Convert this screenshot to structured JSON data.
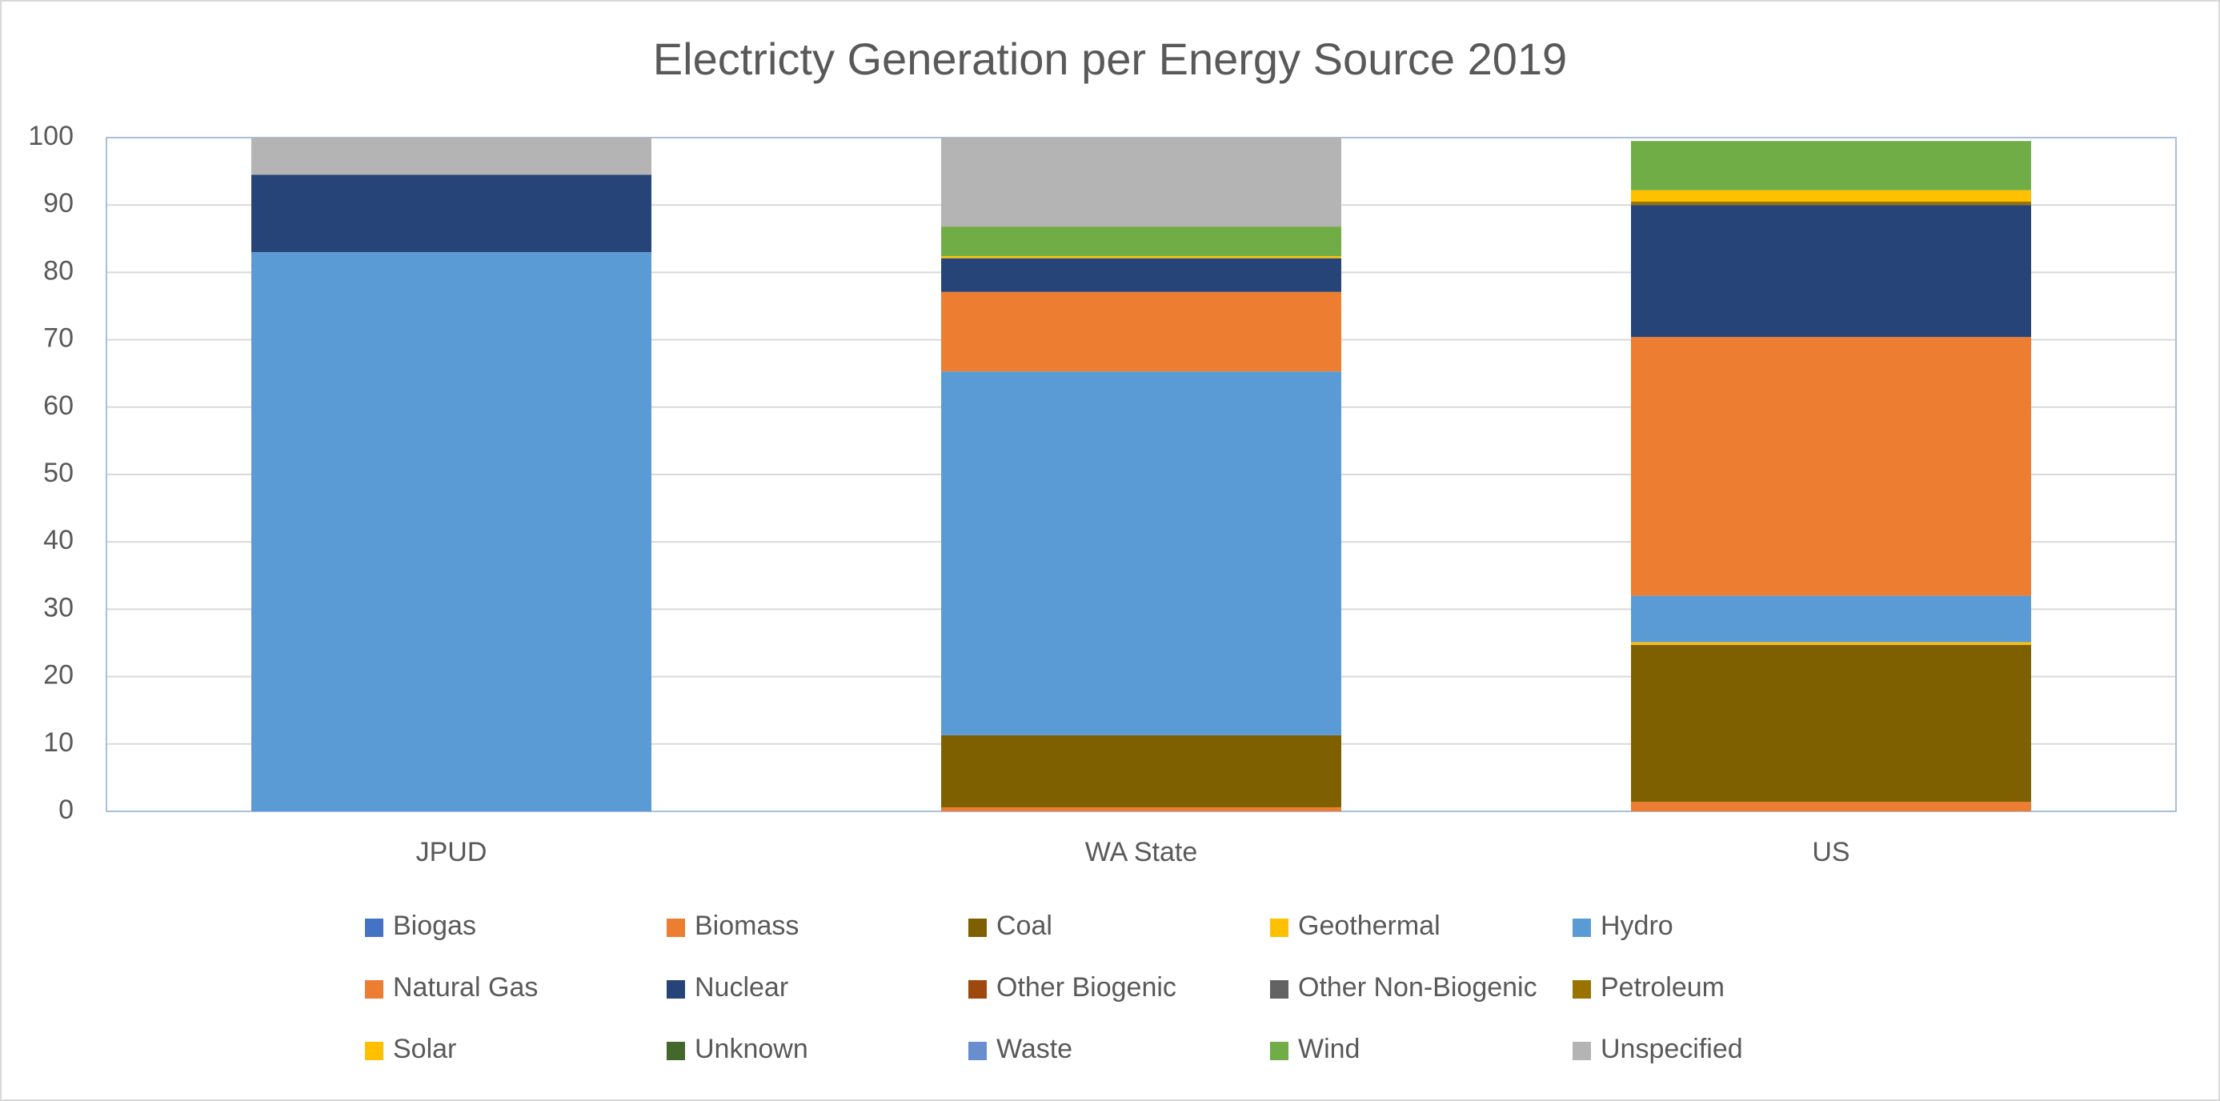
{
  "chart_data": {
    "type": "stacked-bar",
    "title": "Electricty Generation per Energy Source 2019",
    "categories": [
      "JPUD",
      "WA State",
      "US"
    ],
    "series": [
      {
        "name": "Biogas",
        "color": "#4472c4",
        "values": [
          0,
          0,
          0
        ]
      },
      {
        "name": "Biomass",
        "color": "#ed7d31",
        "values": [
          0,
          0.6,
          1.4
        ]
      },
      {
        "name": "Coal",
        "color": "#7f6000",
        "values": [
          0,
          10.7,
          23.3
        ]
      },
      {
        "name": "Geothermal",
        "color": "#ffc000",
        "values": [
          0,
          0,
          0.4
        ]
      },
      {
        "name": "Hydro",
        "color": "#5b9bd5",
        "values": [
          83,
          54,
          6.9
        ]
      },
      {
        "name": "Natural Gas",
        "color": "#ed7d31",
        "values": [
          0,
          11.8,
          38.4
        ]
      },
      {
        "name": "Nuclear",
        "color": "#264478",
        "values": [
          11.5,
          5,
          19.6
        ]
      },
      {
        "name": "Other Biogenic",
        "color": "#9e480e",
        "values": [
          0,
          0,
          0
        ]
      },
      {
        "name": "Other Non-Biogenic",
        "color": "#636363",
        "values": [
          0,
          0,
          0
        ]
      },
      {
        "name": "Petroleum",
        "color": "#997300",
        "values": [
          0,
          0,
          0.5
        ]
      },
      {
        "name": "Solar",
        "color": "#ffc000",
        "values": [
          0,
          0.3,
          1.7
        ]
      },
      {
        "name": "Unknown",
        "color": "#43682b",
        "values": [
          0,
          0,
          0
        ]
      },
      {
        "name": "Waste",
        "color": "#698ed0",
        "values": [
          0,
          0,
          0
        ]
      },
      {
        "name": "Wind",
        "color": "#70ad47",
        "values": [
          0,
          4.4,
          7.3
        ]
      },
      {
        "name": "Unspecified",
        "color": "#b4b4b4",
        "values": [
          5.5,
          13.2,
          0
        ]
      }
    ],
    "ylim": [
      0,
      100
    ],
    "yticks": [
      0,
      10,
      20,
      30,
      40,
      50,
      60,
      70,
      80,
      90,
      100
    ],
    "grid": true
  }
}
